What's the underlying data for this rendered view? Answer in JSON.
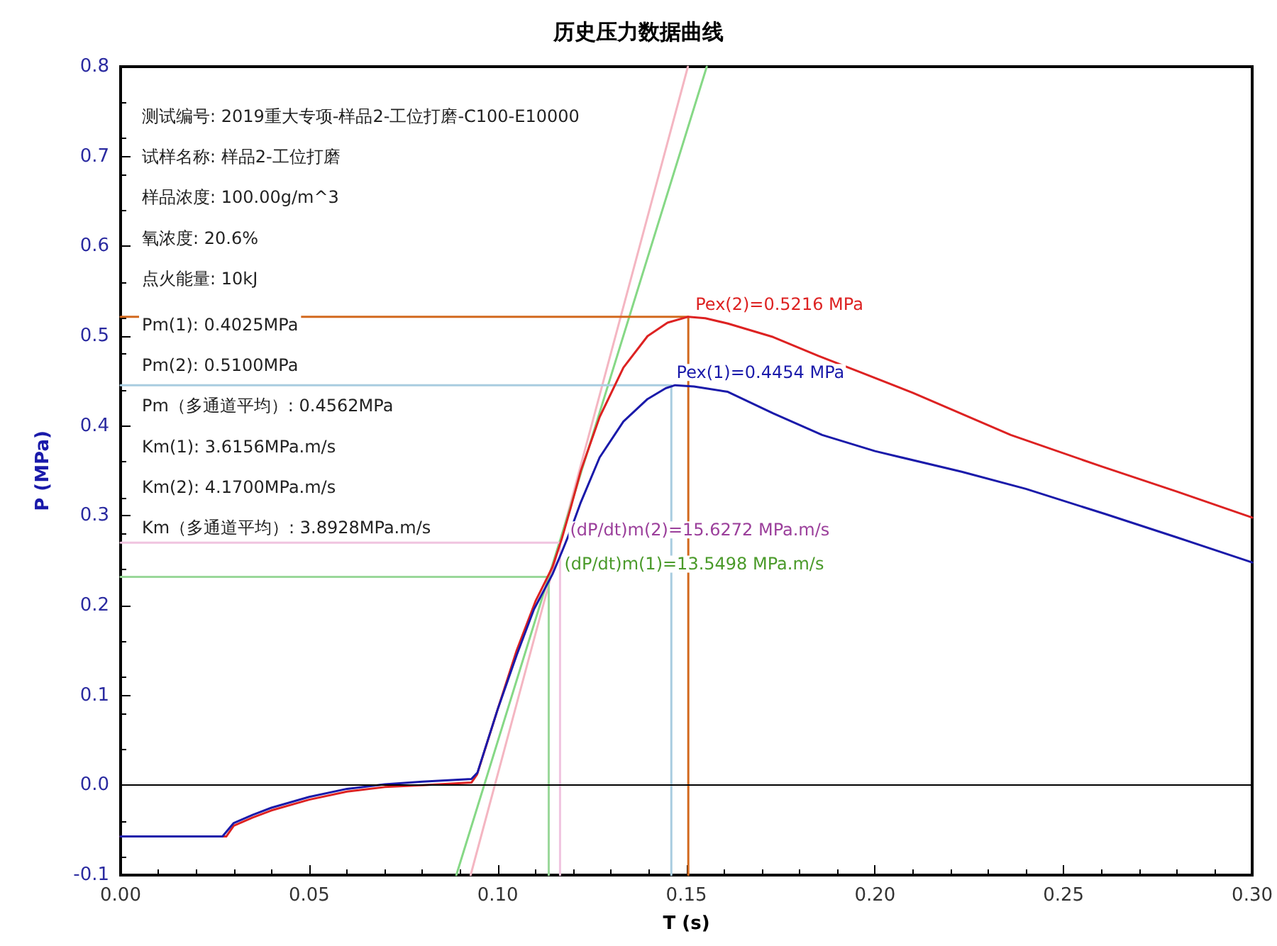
{
  "chart_data": {
    "type": "line",
    "title": "历史压力数据曲线",
    "xlabel": "T (s)",
    "ylabel": "P (MPa)",
    "marker": "none",
    "xlim": [
      0,
      0.3
    ],
    "ylim": [
      -0.1,
      0.8
    ],
    "xticks": [
      {
        "value": 0,
        "label": "0.00"
      },
      {
        "value": 0.05,
        "label": "0.05"
      },
      {
        "value": 0.1,
        "label": "0.10"
      },
      {
        "value": 0.15,
        "label": "0.15"
      },
      {
        "value": 0.2,
        "label": "0.20"
      },
      {
        "value": 0.25,
        "label": "0.25"
      },
      {
        "value": 0.3,
        "label": "0.30"
      }
    ],
    "yticks": [
      -0.1,
      {
        "value": 0,
        "label": "0.0"
      },
      0.1,
      0.2,
      0.3,
      0.4,
      0.5,
      0.6,
      0.7,
      0.8
    ],
    "ref_lines": [
      {
        "axis": "y",
        "value": 0,
        "color": "#000000"
      }
    ],
    "series": [
      {
        "color": "#f4b6c2",
        "x": [
          0.0928,
          0.1504
        ],
        "values": [
          -0.1,
          0.8
        ]
      },
      {
        "color": "#86d886",
        "x": [
          0.089,
          0.1554
        ],
        "values": [
          -0.1,
          0.8
        ]
      },
      {
        "color": "#d2691e",
        "x": [
          0,
          0.1505,
          0.1505
        ],
        "values": [
          0.5216,
          0.5216,
          -0.1
        ]
      },
      {
        "color": "#a9cde0",
        "x": [
          0,
          0.146,
          0.146
        ],
        "values": [
          0.4454,
          0.4454,
          -0.1
        ]
      },
      {
        "color": "#f0c4e0",
        "x": [
          0,
          0.1165,
          0.1165
        ],
        "values": [
          0.27,
          0.27,
          -0.1
        ]
      },
      {
        "color": "#9ad89a",
        "x": [
          0,
          0.1135,
          0.1135
        ],
        "values": [
          0.232,
          0.232,
          -0.1
        ]
      },
      {
        "color": "#dd2222",
        "x": [
          0,
          0.028,
          0.03,
          0.035,
          0.04,
          0.05,
          0.06,
          0.07,
          0.08,
          0.093,
          0.0945,
          0.1,
          0.105,
          0.11,
          0.1145,
          0.117,
          0.1194,
          0.122,
          0.127,
          0.1333,
          0.1397,
          0.145,
          0.1505,
          0.155,
          0.161,
          0.173,
          0.185,
          0.196,
          0.21,
          0.236,
          0.26,
          0.28,
          0.3
        ],
        "values": [
          -0.057,
          -0.057,
          -0.045,
          -0.036,
          -0.028,
          -0.016,
          -0.007,
          -0.002,
          0,
          0.003,
          0.012,
          0.085,
          0.15,
          0.205,
          0.243,
          0.275,
          0.31,
          0.35,
          0.41,
          0.465,
          0.5,
          0.515,
          0.5216,
          0.52,
          0.514,
          0.499,
          0.478,
          0.46,
          0.437,
          0.39,
          0.355,
          0.327,
          0.298
        ]
      },
      {
        "color": "#1a1aaa",
        "x": [
          0,
          0.027,
          0.03,
          0.035,
          0.04,
          0.05,
          0.06,
          0.07,
          0.08,
          0.093,
          0.0946,
          0.1,
          0.105,
          0.1096,
          0.1145,
          0.117,
          0.1194,
          0.122,
          0.127,
          0.1333,
          0.1397,
          0.1445,
          0.147,
          0.152,
          0.161,
          0.173,
          0.186,
          0.2,
          0.223,
          0.24,
          0.261,
          0.28,
          0.3
        ],
        "values": [
          -0.057,
          -0.057,
          -0.042,
          -0.033,
          -0.025,
          -0.013,
          -0.004,
          0.001,
          0.004,
          0.007,
          0.014,
          0.085,
          0.145,
          0.196,
          0.235,
          0.26,
          0.285,
          0.315,
          0.365,
          0.405,
          0.43,
          0.442,
          0.4454,
          0.444,
          0.438,
          0.414,
          0.39,
          0.372,
          0.349,
          0.33,
          0.302,
          0.276,
          0.248
        ]
      }
    ],
    "annotations": [
      "测试编号: 2019重大专项-样品2-工位打磨-C100-E10000",
      "试样名称: 样品2-工位打磨",
      "样品浓度: 100.00g/m^3",
      "氧浓度: 20.6%",
      "点火能量: 10kJ",
      "Pm(1): 0.4025MPa",
      "Pm(2): 0.5100MPa",
      "Pm（多通道平均）: 0.4562MPa",
      "Km(1): 3.6156MPa.m/s",
      "Km(2): 4.1700MPa.m/s",
      "Km（多通道平均）: 3.8928MPa.m/s",
      {
        "text": "Pex(2)=0.5216 MPa",
        "x": 0.1505,
        "y": 0.5216
      },
      {
        "text": "Pex(1)=0.4454 MPa",
        "x": 0.147,
        "y": 0.4454
      },
      {
        "text": "(dP/dt)m(2)=15.6272 MPa.m/s",
        "x": 0.1165,
        "y": 0.27
      },
      {
        "text": "(dP/dt)m(1)=13.5498 MPa.m/s",
        "x": 0.1135,
        "y": 0.232
      }
    ]
  }
}
